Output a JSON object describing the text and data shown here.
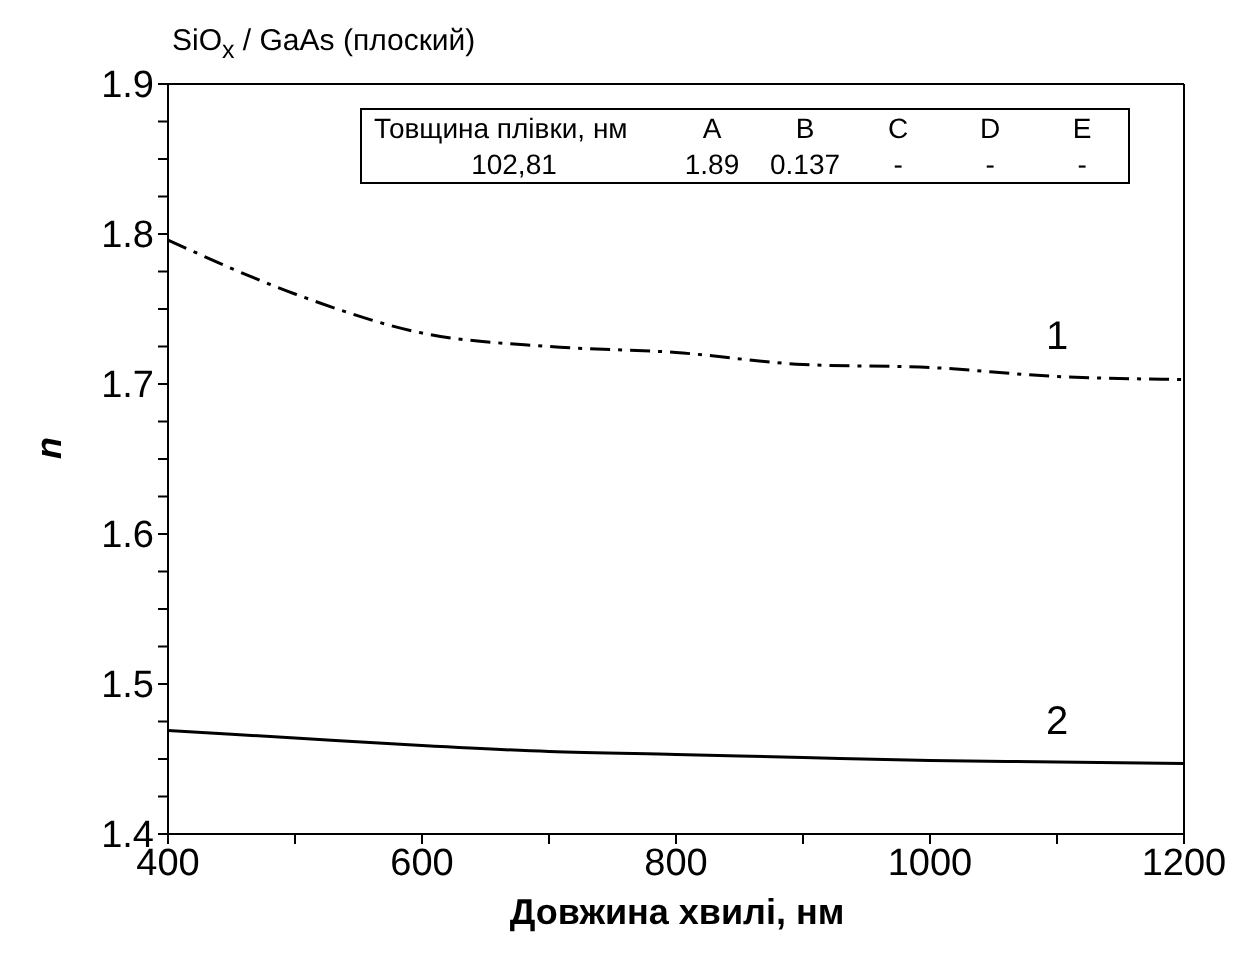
{
  "chart_data": {
    "type": "line",
    "title": "SiO$_{x}$ / GaAs (плоский)",
    "xlabel": "Довжина хвилі, нм",
    "ylabel": "n",
    "x": [
      400,
      500,
      600,
      700,
      800,
      900,
      1000,
      1100,
      1200
    ],
    "series": [
      {
        "name": "1",
        "color": "#000000",
        "line_style": "dashed",
        "values": [
          1.796,
          1.76,
          1.734,
          1.725,
          1.721,
          1.713,
          1.711,
          1.705,
          1.703
        ]
      },
      {
        "name": "2",
        "color": "#000000",
        "line_style": "solid",
        "values": [
          1.469,
          1.464,
          1.459,
          1.455,
          1.453,
          1.451,
          1.449,
          1.448,
          1.447
        ]
      }
    ],
    "xlim": [
      400,
      1200
    ],
    "xticks": [
      400,
      {
        "value": 500,
        "label": null
      },
      600,
      {
        "value": 700,
        "label": null
      },
      800,
      {
        "value": 900,
        "label": null
      },
      1000,
      {
        "value": 1100,
        "label": null
      },
      1200
    ],
    "ylim": [
      1.4,
      1.9
    ],
    "yticks": [
      1.4,
      {
        "value": 1.425,
        "label": null
      },
      {
        "value": 1.45,
        "label": null
      },
      {
        "value": 1.475,
        "label": null
      },
      1.5,
      {
        "value": 1.525,
        "label": null
      },
      {
        "value": 1.55,
        "label": null
      },
      {
        "value": 1.575,
        "label": null
      },
      1.6,
      {
        "value": 1.625,
        "label": null
      },
      {
        "value": 1.65,
        "label": null
      },
      {
        "value": 1.675,
        "label": null
      },
      1.7,
      {
        "value": 1.725,
        "label": null
      },
      {
        "value": 1.75,
        "label": null
      },
      {
        "value": 1.775,
        "label": null
      },
      1.8,
      {
        "value": 1.825,
        "label": null
      },
      {
        "value": 1.85,
        "label": null
      },
      {
        "value": 1.875,
        "label": null
      },
      1.9
    ],
    "grid": false,
    "marker": "none",
    "annotations": [
      "Товщина плівки, нм",
      "A",
      "B",
      "C",
      "D",
      "E",
      "102,81",
      "1.89",
      "0.137",
      "-",
      "-",
      "-"
    ]
  }
}
